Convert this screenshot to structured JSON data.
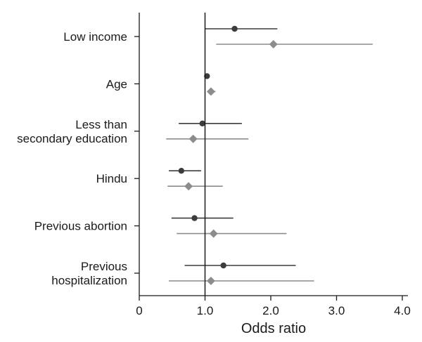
{
  "chart_data": {
    "type": "forest",
    "xlabel": "Odds ratio",
    "xlim": [
      0,
      4.0
    ],
    "x_ticks": [
      "0",
      "1.0",
      "2.0",
      "3.0",
      "4.0"
    ],
    "x_tick_values": [
      0,
      1.0,
      2.0,
      3.0,
      4.0
    ],
    "reference_line": 1.0,
    "grid": false,
    "legend": "none",
    "categories": [
      [
        "Low income"
      ],
      [
        "Age"
      ],
      [
        "Less than",
        "secondary education"
      ],
      [
        "Hindu"
      ],
      [
        "Previous abortion"
      ],
      [
        "Previous",
        "hospitalization"
      ]
    ],
    "series": [
      {
        "marker": "circle",
        "color": "#3c3c3c",
        "points": [
          {
            "or": 1.45,
            "lo": 1.0,
            "hi": 2.1
          },
          {
            "or": 1.03,
            "lo": 1.01,
            "hi": 1.05
          },
          {
            "or": 0.96,
            "lo": 0.6,
            "hi": 1.56
          },
          {
            "or": 0.64,
            "lo": 0.45,
            "hi": 0.94
          },
          {
            "or": 0.84,
            "lo": 0.49,
            "hi": 1.43
          },
          {
            "or": 1.28,
            "lo": 0.69,
            "hi": 2.38
          }
        ]
      },
      {
        "marker": "diamond",
        "color": "#8c8c8c",
        "points": [
          {
            "or": 2.04,
            "lo": 1.17,
            "hi": 3.55
          },
          {
            "or": 1.09,
            "lo": 1.04,
            "hi": 1.16
          },
          {
            "or": 0.82,
            "lo": 0.41,
            "hi": 1.66
          },
          {
            "or": 0.75,
            "lo": 0.43,
            "hi": 1.27
          },
          {
            "or": 1.13,
            "lo": 0.57,
            "hi": 2.24
          },
          {
            "or": 1.09,
            "lo": 0.45,
            "hi": 2.66
          }
        ]
      }
    ]
  }
}
